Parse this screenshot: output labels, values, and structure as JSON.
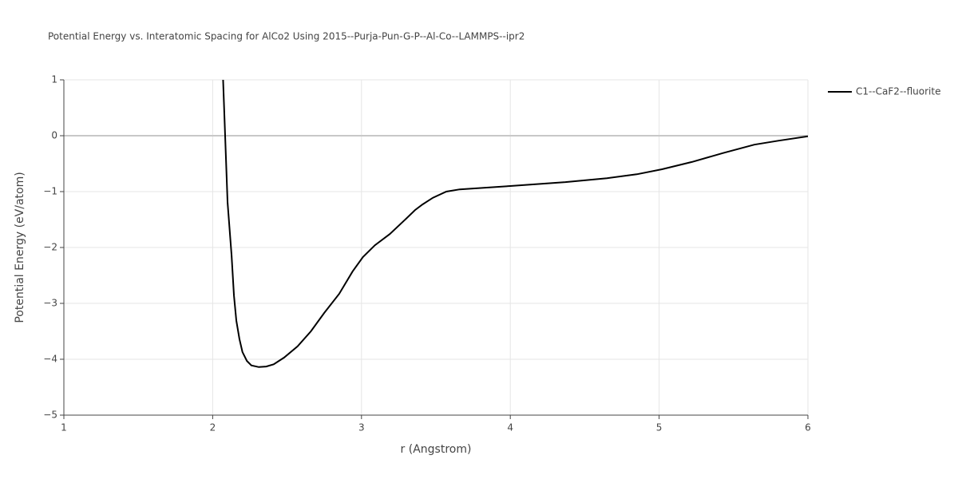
{
  "chart_data": {
    "type": "line",
    "title": "Potential Energy vs. Interatomic Spacing for AlCo2 Using 2015--Purja-Pun-G-P--Al-Co--LAMMPS--ipr2",
    "xlabel": "r (Angstrom)",
    "ylabel": "Potential Energy (eV/atom)",
    "x": [
      2.07,
      2.1,
      2.127,
      2.143,
      2.159,
      2.18,
      2.2,
      2.23,
      2.26,
      2.31,
      2.36,
      2.41,
      2.48,
      2.57,
      2.66,
      2.75,
      2.85,
      2.94,
      3.01,
      3.09,
      3.19,
      3.29,
      3.36,
      3.41,
      3.48,
      3.57,
      3.66,
      4.0,
      4.37,
      4.65,
      4.85,
      5.02,
      5.22,
      5.43,
      5.64,
      5.8,
      6.0
    ],
    "series": [
      {
        "name": "C1--CaF2--fluorite",
        "color": "#000000",
        "values": [
          1.0,
          -1.19,
          -2.14,
          -2.86,
          -3.31,
          -3.64,
          -3.87,
          -4.03,
          -4.11,
          -4.14,
          -4.13,
          -4.09,
          -3.97,
          -3.77,
          -3.5,
          -3.17,
          -2.83,
          -2.43,
          -2.17,
          -1.96,
          -1.76,
          -1.51,
          -1.33,
          -1.23,
          -1.11,
          -1.0,
          -0.96,
          -0.9,
          -0.83,
          -0.76,
          -0.69,
          -0.6,
          -0.47,
          -0.31,
          -0.16,
          -0.09,
          -0.01
        ]
      }
    ],
    "xlim": [
      1,
      6
    ],
    "ylim": [
      -5,
      1
    ],
    "xticks": [
      1,
      2,
      3,
      4,
      5,
      6
    ],
    "yticks": [
      {
        "value": -5,
        "label": "−5"
      },
      {
        "value": -4,
        "label": "−4"
      },
      {
        "value": -3,
        "label": "−3"
      },
      {
        "value": -2,
        "label": "−2"
      },
      {
        "value": -1,
        "label": "−1"
      },
      0,
      1
    ],
    "grid": true,
    "zeroline": true,
    "legend": "right-top"
  }
}
